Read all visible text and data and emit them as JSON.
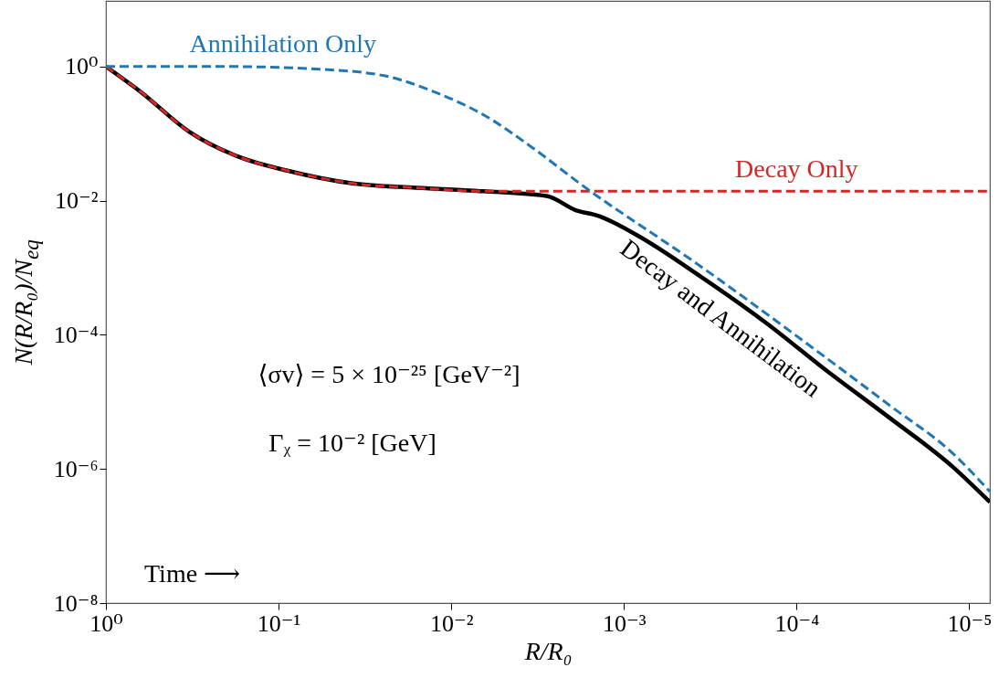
{
  "chart_data": {
    "type": "line",
    "xlabel": "R/R₀",
    "ylabel": "N(R/R₀)/N$_{eq}$",
    "log": "xy",
    "xlim": [
      1,
      7.6e-06
    ],
    "ylim": [
      1e-08,
      9.5
    ],
    "xticks": [
      {
        "value": 1,
        "label": "10⁰"
      },
      {
        "value": 0.1,
        "label": "10⁻¹"
      },
      {
        "value": 0.01,
        "label": "10⁻²"
      },
      {
        "value": 0.001,
        "label": "10⁻³"
      },
      {
        "value": 0.0001,
        "label": "10⁻⁴"
      },
      {
        "value": 1e-05,
        "label": "10⁻⁵"
      }
    ],
    "yticks": [
      {
        "value": 1,
        "label": "10⁰"
      },
      {
        "value": 0.01,
        "label": "10⁻²"
      },
      {
        "value": 0.0001,
        "label": "10⁻⁴"
      },
      {
        "value": 1e-06,
        "label": "10⁻⁶"
      },
      {
        "value": 1e-08,
        "label": "10⁻⁸"
      }
    ],
    "grid": false,
    "series": [
      {
        "name": "Decay and Annihilation",
        "color": "#000000",
        "line_style": "solid",
        "x": [
          1,
          0.63,
          0.33,
          0.17,
          0.089,
          0.037,
          0.016,
          0.0065,
          0.0028,
          0.0019,
          0.0014,
          0.00083,
          0.00036,
          0.00015,
          6.8e-05,
          2.9e-05,
          1.26e-05,
          7.6e-06
        ],
        "values": [
          1,
          0.42,
          0.107,
          0.045,
          0.028,
          0.018,
          0.0155,
          0.0138,
          0.0117,
          0.0072,
          0.0059,
          0.003,
          0.00074,
          0.00015,
          3e-05,
          5.8e-06,
          1.1e-06,
          3.2e-07
        ]
      },
      {
        "name": "Decay Only",
        "color": "#d62728",
        "line_style": "dashed",
        "x": [
          1,
          0.63,
          0.33,
          0.17,
          0.089,
          0.037,
          0.016,
          0.0065,
          0.001,
          0.0001,
          7.6e-06
        ],
        "values": [
          1,
          0.42,
          0.107,
          0.045,
          0.028,
          0.018,
          0.0155,
          0.0138,
          0.0138,
          0.0138,
          0.0138
        ]
      },
      {
        "name": "Annihilation Only",
        "color": "#1f77b4",
        "line_style": "dashed",
        "x": [
          1,
          0.21,
          0.058,
          0.0245,
          0.0126,
          0.0065,
          0.0034,
          0.0018,
          0.00036,
          6.8e-05,
          2.9e-05,
          1.26e-05,
          7.6e-06
        ],
        "values": [
          1,
          1,
          0.91,
          0.73,
          0.42,
          0.19,
          0.062,
          0.018,
          0.00105,
          4.6e-05,
          8.9e-06,
          1.75e-06,
          4.6e-07
        ]
      }
    ],
    "annotations": [
      "⟨σv⟩ = 5 × 10⁻²⁵ [GeV⁻²]",
      "Γᵪ = 10⁻² [GeV]",
      "Time ⟶"
    ]
  }
}
